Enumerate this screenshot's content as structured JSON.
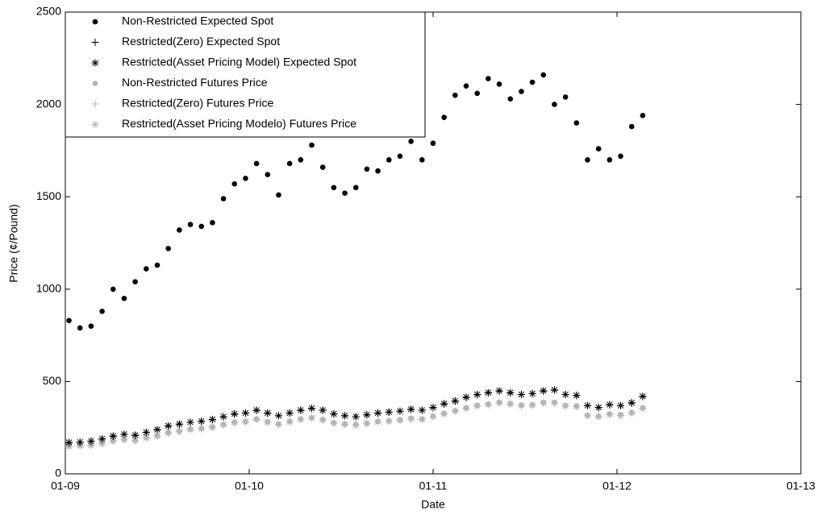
{
  "chart_data": {
    "type": "scatter",
    "xlabel": "Date",
    "ylabel": "Price (¢/Pound)",
    "xlim": [
      2009,
      2013
    ],
    "ylim": [
      0,
      2500
    ],
    "xticks": [
      {
        "value": 2009,
        "label": "01-09"
      },
      {
        "value": 2010,
        "label": "01-10"
      },
      {
        "value": 2011,
        "label": "01-11"
      },
      {
        "value": 2012,
        "label": "01-12"
      },
      {
        "value": 2013,
        "label": "01-13"
      }
    ],
    "yticks": [
      0,
      500,
      1000,
      1500,
      2000,
      2500
    ],
    "legend": "upper left",
    "x": [
      2009.02,
      2009.08,
      2009.14,
      2009.2,
      2009.26,
      2009.32,
      2009.38,
      2009.44,
      2009.5,
      2009.56,
      2009.62,
      2009.68,
      2009.74,
      2009.8,
      2009.86,
      2009.92,
      2009.98,
      2010.04,
      2010.1,
      2010.16,
      2010.22,
      2010.28,
      2010.34,
      2010.4,
      2010.46,
      2010.52,
      2010.58,
      2010.64,
      2010.7,
      2010.76,
      2010.82,
      2010.88,
      2010.94,
      2011.0,
      2011.06,
      2011.12,
      2011.18,
      2011.24,
      2011.3,
      2011.36,
      2011.42,
      2011.48,
      2011.54,
      2011.6,
      2011.66,
      2011.72,
      2011.78,
      2011.84,
      2011.9,
      2011.96,
      2012.02,
      2012.08,
      2012.14
    ],
    "series": [
      {
        "name": "Non-Restricted Expected Spot",
        "color": "#000000",
        "marker": "dot",
        "values": [
          830,
          790,
          800,
          880,
          1000,
          950,
          1040,
          1110,
          1130,
          1220,
          1320,
          1350,
          1340,
          1360,
          1490,
          1570,
          1600,
          1680,
          1620,
          1510,
          1680,
          1700,
          1780,
          1660,
          1550,
          1520,
          1550,
          1650,
          1640,
          1700,
          1720,
          1800,
          1700,
          1790,
          1930,
          2050,
          2100,
          2060,
          2140,
          2110,
          2030,
          2070,
          2120,
          2160,
          2000,
          2040,
          1900,
          1700,
          1760,
          1700,
          1720,
          1880,
          1940
        ]
      },
      {
        "name": "Restricted(Zero) Expected Spot",
        "color": "#000000",
        "marker": "plus",
        "values": [
          168,
          171,
          176,
          188,
          203,
          214,
          208,
          224,
          238,
          258,
          268,
          279,
          284,
          293,
          308,
          323,
          329,
          343,
          328,
          314,
          329,
          343,
          353,
          344,
          324,
          314,
          309,
          319,
          328,
          334,
          339,
          348,
          344,
          358,
          378,
          393,
          413,
          428,
          438,
          448,
          438,
          429,
          434,
          448,
          453,
          429,
          424,
          369,
          359,
          373,
          369,
          383,
          418
        ]
      },
      {
        "name": "Restricted(Asset Pricing Model) Expected Spot",
        "color": "#000000",
        "marker": "asterisk",
        "values": [
          170,
          172,
          178,
          190,
          205,
          215,
          210,
          225,
          240,
          260,
          270,
          280,
          285,
          295,
          310,
          325,
          330,
          345,
          330,
          315,
          330,
          345,
          355,
          345,
          325,
          315,
          310,
          320,
          330,
          335,
          340,
          350,
          345,
          360,
          380,
          395,
          415,
          430,
          440,
          450,
          440,
          430,
          435,
          450,
          455,
          430,
          425,
          370,
          360,
          375,
          370,
          385,
          420
        ]
      },
      {
        "name": "Non-Restricted Futures Price",
        "color": "#b4b4b4",
        "marker": "dot",
        "values": [
          152,
          154,
          157,
          167,
          180,
          187,
          182,
          197,
          207,
          224,
          232,
          242,
          247,
          254,
          267,
          280,
          284,
          297,
          282,
          270,
          284,
          297,
          304,
          294,
          277,
          270,
          267,
          274,
          284,
          287,
          292,
          300,
          297,
          312,
          327,
          342,
          357,
          370,
          377,
          387,
          380,
          372,
          374,
          387,
          387,
          370,
          367,
          317,
          312,
          324,
          320,
          332,
          357
        ]
      },
      {
        "name": "Restricted(Zero) Futures Price",
        "color": "#b4b4b4",
        "marker": "plus",
        "values": [
          149,
          151,
          154,
          164,
          177,
          184,
          179,
          194,
          204,
          221,
          229,
          239,
          244,
          251,
          264,
          277,
          281,
          294,
          279,
          267,
          281,
          294,
          301,
          291,
          274,
          267,
          264,
          271,
          281,
          284,
          289,
          297,
          294,
          309,
          324,
          339,
          354,
          367,
          374,
          384,
          377,
          369,
          371,
          384,
          384,
          367,
          364,
          314,
          309,
          321,
          317,
          329,
          354
        ]
      },
      {
        "name": "Restricted(Asset Pricing Modelo) Futures Price",
        "color": "#b4b4b4",
        "marker": "asterisk",
        "values": [
          150,
          152,
          155,
          165,
          178,
          185,
          180,
          195,
          205,
          222,
          230,
          240,
          245,
          252,
          265,
          278,
          282,
          295,
          280,
          268,
          282,
          295,
          302,
          292,
          275,
          268,
          265,
          272,
          282,
          285,
          290,
          298,
          295,
          310,
          325,
          340,
          355,
          368,
          375,
          385,
          378,
          370,
          372,
          385,
          385,
          368,
          365,
          315,
          310,
          322,
          318,
          330,
          355
        ]
      }
    ]
  }
}
